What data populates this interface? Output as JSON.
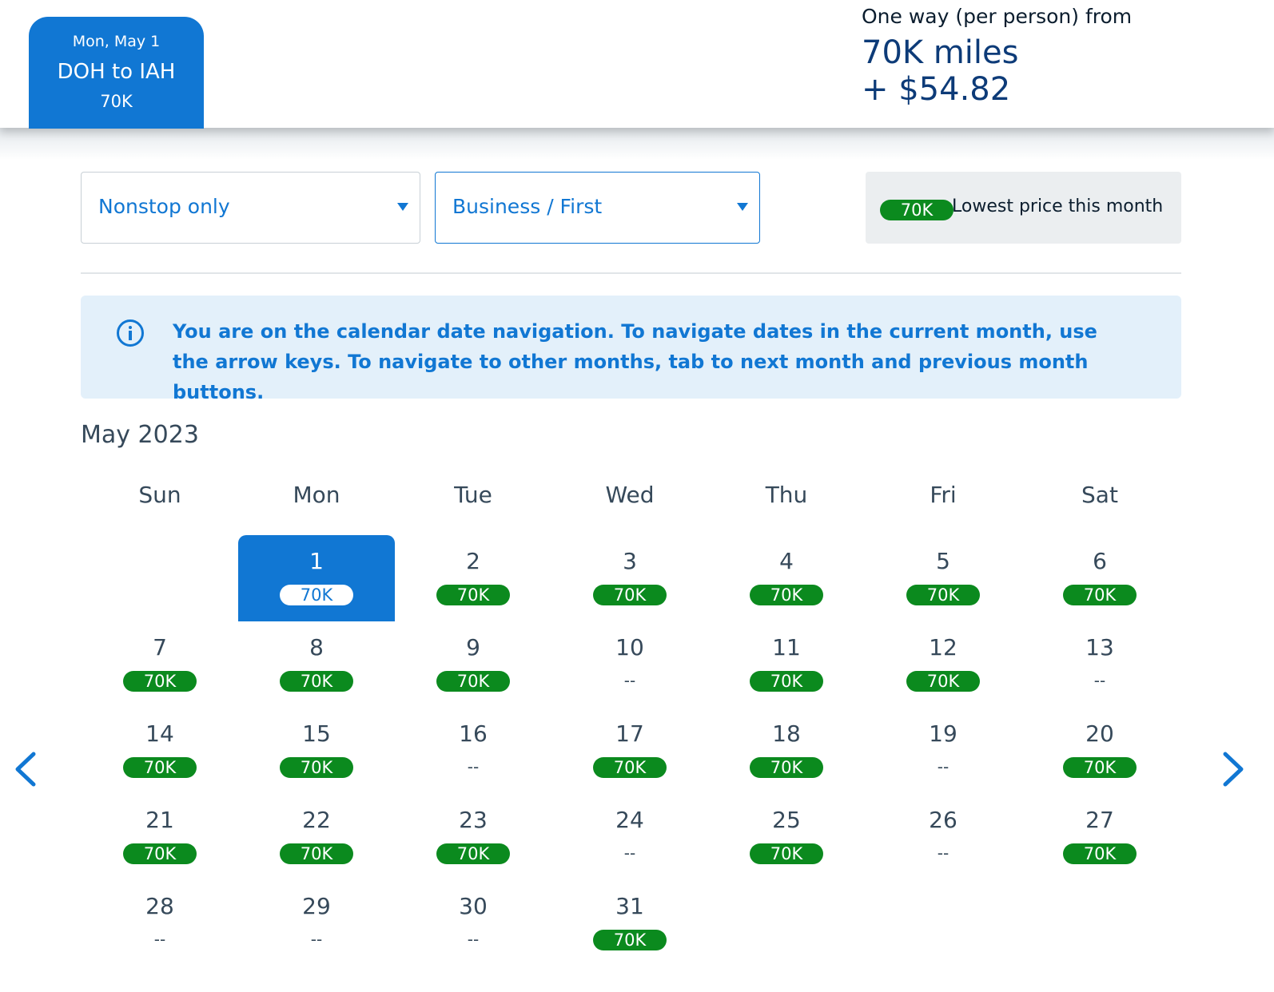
{
  "header": {
    "tab": {
      "date": "Mon, May 1",
      "route": "DOH to IAH",
      "price": "70K"
    },
    "fare": {
      "label": "One way (per person) from",
      "miles": "70K miles",
      "fee": "+ $54.82"
    }
  },
  "filters": {
    "stops": {
      "value": "Nonstop only"
    },
    "cabin": {
      "value": "Business / First"
    }
  },
  "legend": {
    "pill": "70K",
    "text": "Lowest price this month"
  },
  "banner": {
    "text": "You are on the calendar date navigation. To navigate dates in the current month, use the arrow keys. To navigate to other months, tab to next month and previous month buttons."
  },
  "calendar": {
    "month": "May 2023",
    "weekdays": [
      "Sun",
      "Mon",
      "Tue",
      "Wed",
      "Thu",
      "Fri",
      "Sat"
    ],
    "first_weekday_index": 1,
    "selected_day": 1,
    "no_price_text": "--",
    "days": [
      {
        "day": "1",
        "price": "70K"
      },
      {
        "day": "2",
        "price": "70K"
      },
      {
        "day": "3",
        "price": "70K"
      },
      {
        "day": "4",
        "price": "70K"
      },
      {
        "day": "5",
        "price": "70K"
      },
      {
        "day": "6",
        "price": "70K"
      },
      {
        "day": "7",
        "price": "70K"
      },
      {
        "day": "8",
        "price": "70K"
      },
      {
        "day": "9",
        "price": "70K"
      },
      {
        "day": "10",
        "price": null
      },
      {
        "day": "11",
        "price": "70K"
      },
      {
        "day": "12",
        "price": "70K"
      },
      {
        "day": "13",
        "price": null
      },
      {
        "day": "14",
        "price": "70K"
      },
      {
        "day": "15",
        "price": "70K"
      },
      {
        "day": "16",
        "price": null
      },
      {
        "day": "17",
        "price": "70K"
      },
      {
        "day": "18",
        "price": "70K"
      },
      {
        "day": "19",
        "price": null
      },
      {
        "day": "20",
        "price": "70K"
      },
      {
        "day": "21",
        "price": "70K"
      },
      {
        "day": "22",
        "price": "70K"
      },
      {
        "day": "23",
        "price": "70K"
      },
      {
        "day": "24",
        "price": null
      },
      {
        "day": "25",
        "price": "70K"
      },
      {
        "day": "26",
        "price": null
      },
      {
        "day": "27",
        "price": "70K"
      },
      {
        "day": "28",
        "price": null
      },
      {
        "day": "29",
        "price": null
      },
      {
        "day": "30",
        "price": null
      },
      {
        "day": "31",
        "price": "70K"
      }
    ]
  },
  "colors": {
    "accent": "#1177d3",
    "price_pill": "#0b8a1e",
    "banner_bg": "#e3f0fa"
  },
  "icons": {
    "prev": "chevron-left-icon",
    "next": "chevron-right-icon",
    "info": "info-icon",
    "caret": "caret-down-icon"
  }
}
